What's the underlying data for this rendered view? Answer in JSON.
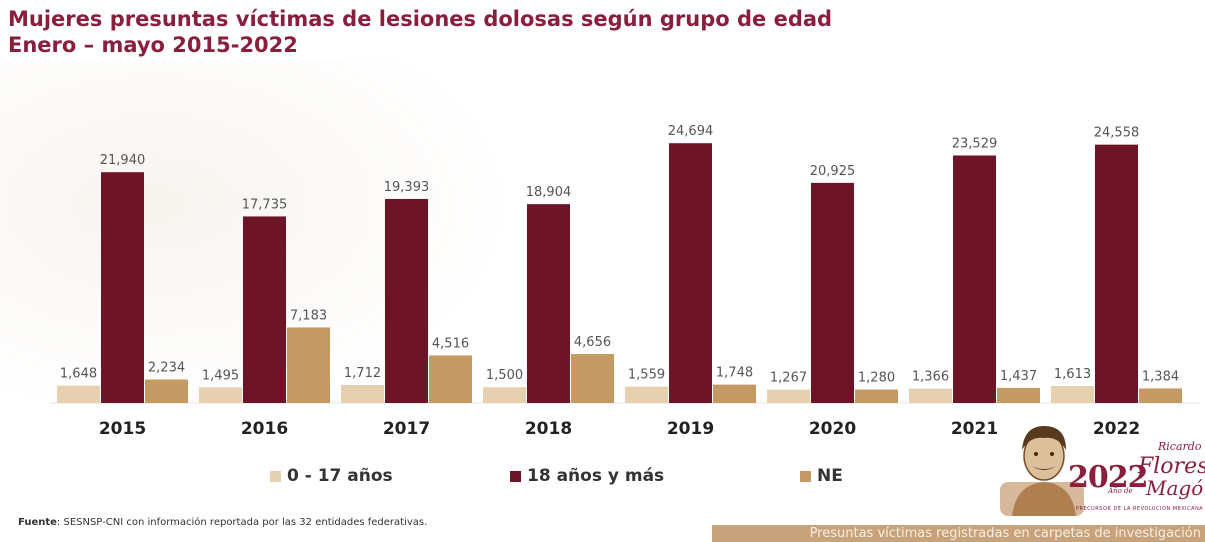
{
  "title": "Mujeres presuntas víctimas de lesiones dolosas según grupo de edad",
  "subtitle": "Enero – mayo 2015-2022",
  "chart_data": {
    "type": "bar",
    "categories": [
      "2015",
      "2016",
      "2017",
      "2018",
      "2019",
      "2020",
      "2021",
      "2022"
    ],
    "series": [
      {
        "name": "0 - 17 años",
        "color": "#e7d0b0",
        "values": [
          1648,
          1495,
          1712,
          1500,
          1559,
          1267,
          1366,
          1613
        ],
        "labels": [
          "1,648",
          "1,495",
          "1,712",
          "1,500",
          "1,559",
          "1,267",
          "1,366",
          "1,613"
        ]
      },
      {
        "name": "18 años y más",
        "color": "#6e1427",
        "values": [
          21940,
          17735,
          19393,
          18904,
          24694,
          20925,
          23529,
          24558
        ],
        "labels": [
          "21,940",
          "17,735",
          "19,393",
          "18,904",
          "24,694",
          "20,925",
          "23,529",
          "24,558"
        ]
      },
      {
        "name": "NE",
        "color": "#c39a63",
        "values": [
          2234,
          7183,
          4516,
          4656,
          1748,
          1280,
          1437,
          1384
        ],
        "labels": [
          "2,234",
          "7,183",
          "4,516",
          "4,656",
          "1,748",
          "1,280",
          "1,437",
          "1,384"
        ]
      }
    ],
    "ylim": [
      0,
      25000
    ],
    "grid": false,
    "legend_position": "bottom"
  },
  "source": {
    "label": "Fuente",
    "text": ": SESNSP-CNI con información reportada por las 32 entidades federativas."
  },
  "footer_band": "Presuntas víctimas registradas en carpetas de investigación",
  "logo": {
    "year": "2022",
    "line1": "Ricardo",
    "line2": "Flores",
    "line3": "Magón",
    "connector": "Año de",
    "tagline": "PRECURSOR DE LA REVOLUCIÓN MEXICANA"
  }
}
